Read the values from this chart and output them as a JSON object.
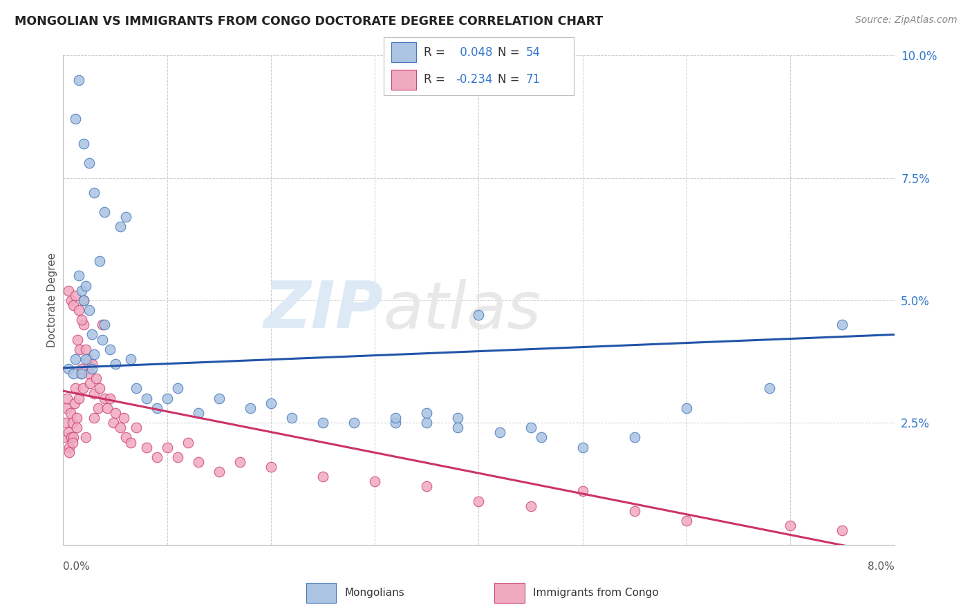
{
  "title": "MONGOLIAN VS IMMIGRANTS FROM CONGO DOCTORATE DEGREE CORRELATION CHART",
  "source": "Source: ZipAtlas.com",
  "ylabel": "Doctorate Degree",
  "xlim": [
    0.0,
    8.0
  ],
  "ylim": [
    0.0,
    10.0
  ],
  "yticks": [
    0.0,
    2.5,
    5.0,
    7.5,
    10.0
  ],
  "mongolians": {
    "R": 0.048,
    "N": 54,
    "color": "#aac4e2",
    "edge_color": "#4477bb",
    "line_color": "#2255aa",
    "x": [
      0.05,
      0.1,
      0.12,
      0.15,
      0.18,
      0.2,
      0.22,
      0.25,
      0.28,
      0.3,
      0.35,
      0.38,
      0.4,
      0.45,
      0.5,
      0.55,
      0.6,
      0.65,
      0.7,
      0.8,
      0.9,
      1.0,
      1.1,
      1.3,
      1.5,
      1.8,
      2.0,
      2.2,
      2.5,
      2.8,
      3.2,
      3.5,
      3.8,
      4.0,
      4.5,
      5.0,
      5.5,
      6.0,
      6.8,
      7.5,
      0.15,
      0.2,
      0.25,
      0.3,
      0.4,
      3.2,
      3.5,
      3.8,
      4.2,
      4.6,
      0.18,
      0.22,
      0.12,
      0.28
    ],
    "y": [
      3.6,
      3.5,
      3.8,
      5.5,
      5.2,
      5.0,
      5.3,
      4.8,
      4.3,
      3.9,
      5.8,
      4.2,
      4.5,
      4.0,
      3.7,
      6.5,
      6.7,
      3.8,
      3.2,
      3.0,
      2.8,
      3.0,
      3.2,
      2.7,
      3.0,
      2.8,
      2.9,
      2.6,
      2.5,
      2.5,
      2.5,
      2.7,
      2.6,
      4.7,
      2.4,
      2.0,
      2.2,
      2.8,
      3.2,
      4.5,
      9.5,
      8.2,
      7.8,
      7.2,
      6.8,
      2.6,
      2.5,
      2.4,
      2.3,
      2.2,
      3.5,
      3.8,
      8.7,
      3.6
    ]
  },
  "congo": {
    "R": -0.234,
    "N": 71,
    "color": "#f0aabf",
    "edge_color": "#cc4477",
    "line_color": "#cc3366",
    "x": [
      0.01,
      0.02,
      0.03,
      0.04,
      0.05,
      0.06,
      0.07,
      0.08,
      0.09,
      0.1,
      0.11,
      0.12,
      0.13,
      0.14,
      0.15,
      0.16,
      0.17,
      0.18,
      0.19,
      0.2,
      0.22,
      0.24,
      0.25,
      0.26,
      0.28,
      0.3,
      0.32,
      0.34,
      0.35,
      0.38,
      0.4,
      0.42,
      0.45,
      0.48,
      0.5,
      0.55,
      0.58,
      0.6,
      0.65,
      0.7,
      0.8,
      0.9,
      1.0,
      1.1,
      1.2,
      1.3,
      1.5,
      1.7,
      2.0,
      2.5,
      3.0,
      3.5,
      4.0,
      4.5,
      5.0,
      5.5,
      6.0,
      7.0,
      7.5,
      0.05,
      0.08,
      0.1,
      0.12,
      0.15,
      0.18,
      0.2,
      0.06,
      0.09,
      0.13,
      0.22,
      0.3
    ],
    "y": [
      2.2,
      2.5,
      2.8,
      3.0,
      2.3,
      2.0,
      2.7,
      2.2,
      2.5,
      2.2,
      2.9,
      3.2,
      2.6,
      4.2,
      3.0,
      4.0,
      3.5,
      3.6,
      3.2,
      4.5,
      4.0,
      3.8,
      3.5,
      3.3,
      3.7,
      3.1,
      3.4,
      2.8,
      3.2,
      4.5,
      3.0,
      2.8,
      3.0,
      2.5,
      2.7,
      2.4,
      2.6,
      2.2,
      2.1,
      2.4,
      2.0,
      1.8,
      2.0,
      1.8,
      2.1,
      1.7,
      1.5,
      1.7,
      1.6,
      1.4,
      1.3,
      1.2,
      0.9,
      0.8,
      1.1,
      0.7,
      0.5,
      0.4,
      0.3,
      5.2,
      5.0,
      4.9,
      5.1,
      4.8,
      4.6,
      5.0,
      1.9,
      2.1,
      2.4,
      2.2,
      2.6
    ]
  },
  "background_color": "#ffffff",
  "grid_color": "#cccccc"
}
